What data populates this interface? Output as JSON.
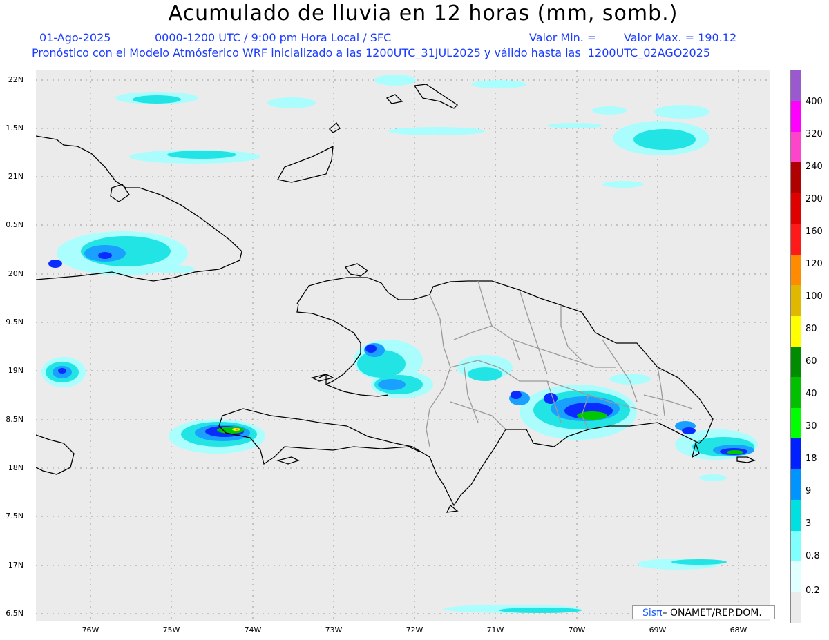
{
  "title": "Acumulado de lluvia en 12 horas (mm, somb.)",
  "subtitle_line1": {
    "date": "01-Ago-2025",
    "period": "0000-1200 UTC / 9:00 pm Hora Local / SFC",
    "min_label": "Valor Min. =",
    "max_label": "Valor Max. = 190.12"
  },
  "subtitle_line2": "Pronóstico con el Modelo Atmósferico WRF inicializado a las 1200UTC_31JUL2025 y válido hasta las  1200UTC_02AGO2025",
  "axes": {
    "lat_labels": [
      "22N",
      "1.5N",
      "21N",
      "0.5N",
      "20N",
      "9.5N",
      "19N",
      "8.5N",
      "18N",
      "7.5N",
      "17N",
      "6.5N"
    ],
    "lon_labels": [
      "76W",
      "75W",
      "74W",
      "73W",
      "72W",
      "71W",
      "70W",
      "69W",
      "68W"
    ]
  },
  "colorbar": {
    "labels": [
      "400",
      "320",
      "240",
      "200",
      "160",
      "120",
      "100",
      "80",
      "60",
      "40",
      "30",
      "18",
      "9",
      "3",
      "0.8",
      "0.2"
    ],
    "colors": [
      "#9b59d0",
      "#ff00ff",
      "#ff44cc",
      "#b00000",
      "#e00000",
      "#ff1a1a",
      "#ff8c00",
      "#e0b800",
      "#ffff00",
      "#008c00",
      "#00c000",
      "#00ff00",
      "#0020ff",
      "#0094ff",
      "#00e0e0",
      "#80ffff",
      "#e0ffff",
      "#ebebeb"
    ]
  },
  "credit": {
    "sis": "Sisπ",
    "text": "– ONAMET/REP.DOM."
  }
}
